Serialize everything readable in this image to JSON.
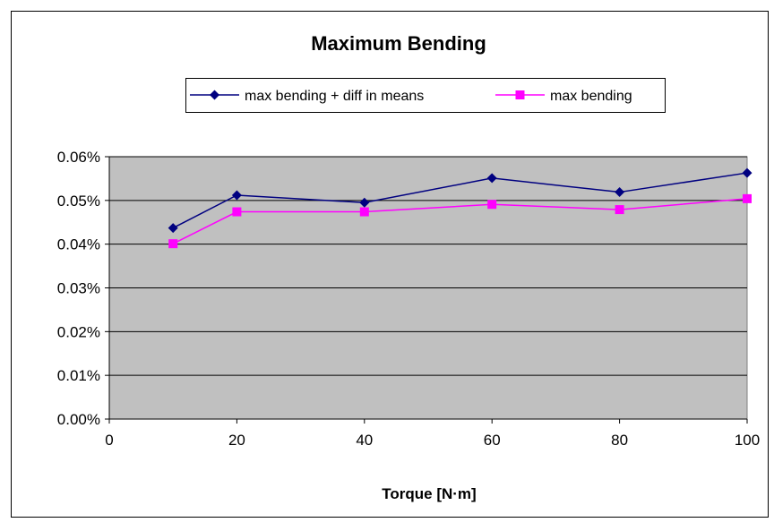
{
  "chart_data": {
    "type": "line",
    "title": "Maximum Bending",
    "xlabel": "Torque [N·m]",
    "ylabel": "",
    "xlim": [
      0,
      100
    ],
    "ylim": [
      0,
      0.0006
    ],
    "x_ticks": [
      0,
      20,
      40,
      60,
      80,
      100
    ],
    "x_tick_labels": [
      "0",
      "20",
      "40",
      "60",
      "80",
      "100"
    ],
    "y_ticks": [
      0,
      0.0001,
      0.0002,
      0.0003,
      0.0004,
      0.0005,
      0.0006
    ],
    "y_tick_labels": [
      "0.00%",
      "0.01%",
      "0.02%",
      "0.03%",
      "0.04%",
      "0.05%",
      "0.06%"
    ],
    "grid": {
      "horizontal": true,
      "vertical": false
    },
    "legend_position": "top",
    "plot_background": "#C0C0C0",
    "series": [
      {
        "name": "max bending + diff in means",
        "color": "#000080",
        "marker": "diamond",
        "x": [
          10,
          20,
          40,
          60,
          80,
          100
        ],
        "y": [
          0.000437,
          0.000512,
          0.000495,
          0.000551,
          0.000519,
          0.000563
        ]
      },
      {
        "name": "max bending",
        "color": "#FF00FF",
        "marker": "square",
        "x": [
          10,
          20,
          40,
          60,
          80,
          100
        ],
        "y": [
          0.000401,
          0.000474,
          0.000474,
          0.000491,
          0.000479,
          0.000504
        ]
      }
    ]
  }
}
